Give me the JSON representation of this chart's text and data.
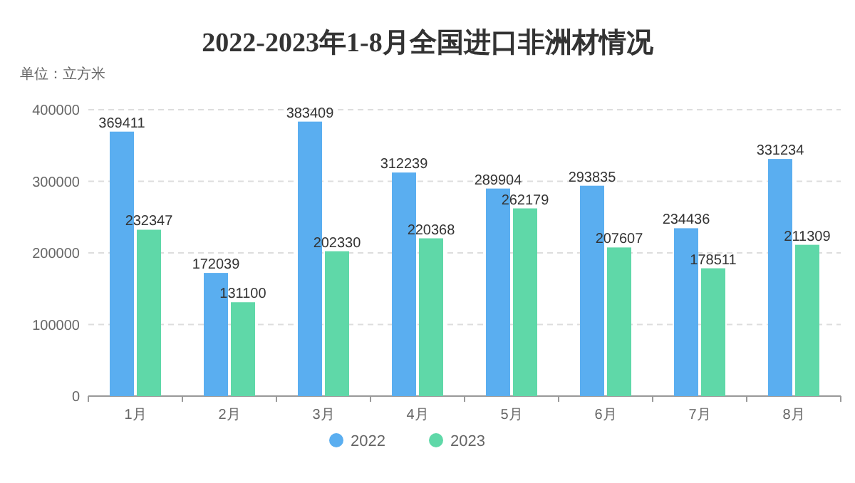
{
  "chart_data": {
    "type": "bar",
    "title": "2022-2023年1-8月全国进口非洲材情况",
    "ylabel": "单位：立方米",
    "categories": [
      "1月",
      "2月",
      "3月",
      "4月",
      "5月",
      "6月",
      "7月",
      "8月"
    ],
    "series": [
      {
        "name": "2022",
        "color": "#5aaef0",
        "values": [
          369411,
          172039,
          383409,
          312239,
          289904,
          293835,
          234436,
          331234
        ]
      },
      {
        "name": "2023",
        "color": "#5fd8a8",
        "values": [
          232347,
          131100,
          202330,
          220368,
          262179,
          207607,
          178511,
          211309
        ]
      }
    ],
    "ylim": [
      0,
      400000
    ],
    "yticks": [
      0,
      100000,
      200000,
      300000,
      400000
    ],
    "grid": "y",
    "legend": "bottom",
    "data_labels": true
  }
}
